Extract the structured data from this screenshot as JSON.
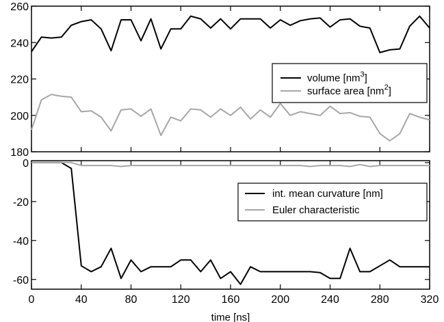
{
  "chart_data": [
    {
      "type": "line",
      "title": "",
      "xlabel": "",
      "ylabel": "",
      "xlim": [
        0,
        320
      ],
      "ylim": [
        180,
        260
      ],
      "x_ticks": [
        "0",
        "40",
        "80",
        "120",
        "160",
        "200",
        "240",
        "280",
        "320"
      ],
      "y_ticks": [
        "180",
        "200",
        "220",
        "240",
        "260"
      ],
      "grid": false,
      "legend_position": "right",
      "series": [
        {
          "name": "volume [nm³]",
          "label_text": "volume [nm",
          "label_sup": "3",
          "label_close": "]",
          "color": "#000000",
          "x": [
            0,
            8,
            16,
            24,
            32,
            40,
            48,
            56,
            64,
            72,
            80,
            88,
            96,
            104,
            112,
            120,
            128,
            136,
            144,
            152,
            160,
            168,
            176,
            184,
            192,
            200,
            208,
            216,
            224,
            232,
            240,
            248,
            256,
            264,
            272,
            280,
            288,
            296,
            304,
            312,
            320
          ],
          "y": [
            235,
            243,
            242.5,
            243,
            249.5,
            251.5,
            252.5,
            247.5,
            235.5,
            252.5,
            252.5,
            241,
            253,
            236.5,
            247.5,
            247.5,
            254.5,
            253,
            248,
            253,
            247.5,
            253,
            253,
            253,
            248,
            252.5,
            249.5,
            252,
            253,
            253.5,
            248.5,
            252.5,
            253,
            249,
            248,
            234.5,
            236,
            236.5,
            249,
            254.5,
            248
          ]
        },
        {
          "name": "surface area [nm²]",
          "label_text": "surface area [nm",
          "label_sup": "2",
          "label_close": "]",
          "color": "#a6a6a6",
          "x": [
            0,
            8,
            16,
            24,
            32,
            40,
            48,
            56,
            64,
            72,
            80,
            88,
            96,
            104,
            112,
            120,
            128,
            136,
            144,
            152,
            160,
            168,
            176,
            184,
            192,
            200,
            208,
            216,
            224,
            232,
            240,
            248,
            256,
            264,
            272,
            280,
            288,
            296,
            304,
            312,
            320
          ],
          "y": [
            192,
            208.5,
            211.5,
            210.5,
            210,
            202,
            202.5,
            199,
            191.5,
            203,
            203.5,
            199.5,
            203.5,
            189,
            199,
            197,
            203.5,
            203,
            199,
            203.5,
            200,
            204.5,
            198,
            203,
            199,
            206.5,
            200,
            202,
            201,
            200,
            205,
            201,
            201.5,
            199.5,
            199,
            190,
            186,
            190,
            201,
            199,
            197.5
          ]
        }
      ]
    },
    {
      "type": "line",
      "title": "",
      "xlabel": "time [ns]",
      "ylabel": "",
      "xlim": [
        0,
        320
      ],
      "ylim": [
        -65,
        1
      ],
      "x_ticks": [
        "0",
        "40",
        "80",
        "120",
        "160",
        "200",
        "240",
        "280",
        "320"
      ],
      "y_ticks": [
        "0",
        "-20",
        "-40",
        "-60"
      ],
      "grid": false,
      "legend_position": "right",
      "series": [
        {
          "name": "int. mean curvature [nm]",
          "color": "#000000",
          "x": [
            0,
            8,
            16,
            24,
            32,
            40,
            48,
            56,
            64,
            72,
            80,
            88,
            96,
            104,
            112,
            120,
            128,
            136,
            144,
            152,
            160,
            168,
            176,
            184,
            192,
            200,
            208,
            216,
            224,
            232,
            240,
            248,
            256,
            264,
            272,
            280,
            288,
            296,
            304,
            312,
            320
          ],
          "y": [
            0,
            0,
            0,
            0,
            -3,
            -53,
            -56,
            -53.5,
            -44,
            -59.5,
            -50,
            -56,
            -53.5,
            -53.5,
            -53.5,
            -50,
            -50,
            -56,
            -50,
            -59.5,
            -56,
            -62.5,
            -53.5,
            -56,
            -56,
            -56,
            -56,
            -56,
            -56,
            -56.5,
            -59.5,
            -59.5,
            -44,
            -56,
            -56,
            -53,
            -50,
            -53.5,
            -53.5,
            -53.5,
            -53.5
          ]
        },
        {
          "name": "Euler characteristic",
          "color": "#a6a6a6",
          "x": [
            0,
            8,
            16,
            24,
            32,
            40,
            48,
            56,
            64,
            72,
            80,
            88,
            96,
            104,
            112,
            120,
            128,
            136,
            144,
            152,
            160,
            168,
            176,
            184,
            192,
            200,
            208,
            216,
            224,
            232,
            240,
            248,
            256,
            264,
            272,
            280,
            288,
            296,
            304,
            312,
            320
          ],
          "y": [
            0,
            0,
            0,
            0,
            0,
            -1.5,
            -1.5,
            -1.5,
            -1.5,
            -2,
            -1.5,
            -1.5,
            -1.5,
            -1.5,
            -1.5,
            -1.5,
            -1.5,
            -1.5,
            -1.5,
            -1.5,
            -1.5,
            -1.5,
            -1.5,
            -1.5,
            -1.5,
            -1.5,
            -1.5,
            -1.5,
            -2,
            -1.5,
            -1.5,
            -1.5,
            -2,
            -1,
            -2,
            -1.5,
            -1.5,
            -1.5,
            -1.5,
            -1.5,
            -1.5
          ]
        }
      ]
    }
  ]
}
